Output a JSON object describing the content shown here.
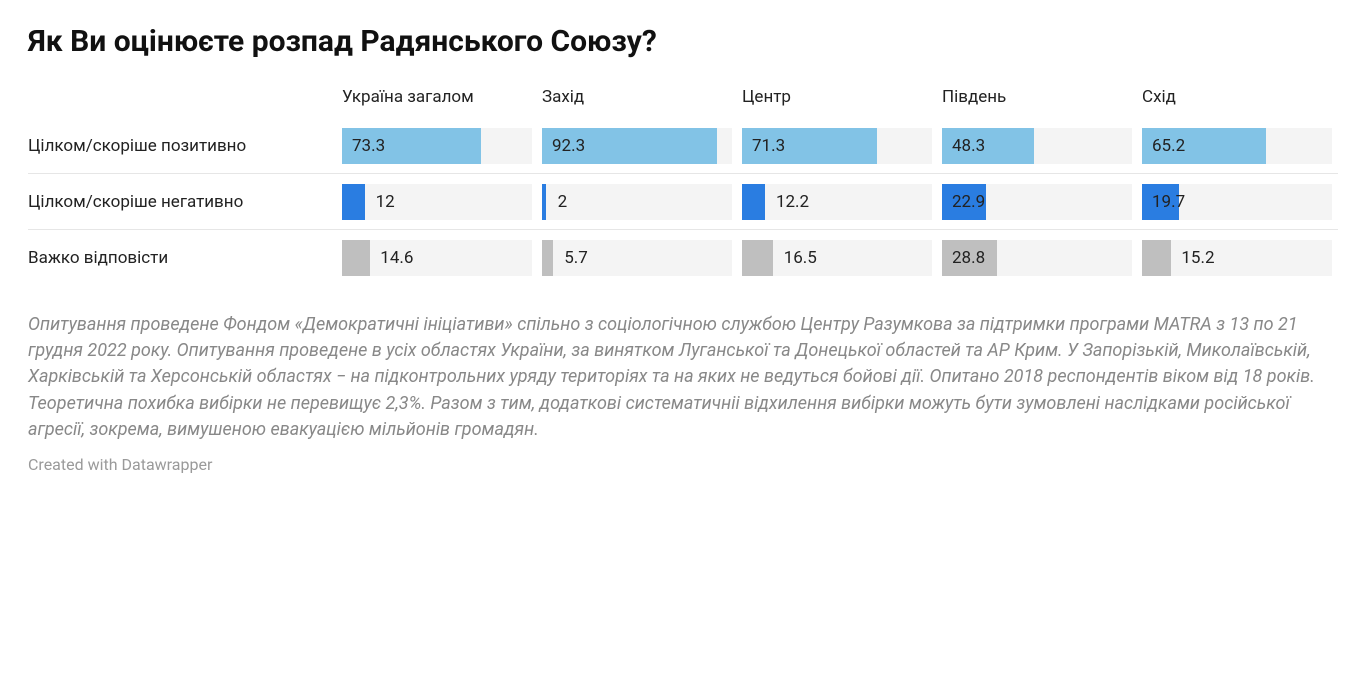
{
  "title": "Як Ви оцінюєте розпад Радянського Союзу?",
  "columns": [
    "Україна загалом",
    "Захід",
    "Центр",
    "Південь",
    "Схід"
  ],
  "rows": [
    {
      "label": "Цілком/скоріше позитивно",
      "color": "#82c3e6",
      "values": [
        73.3,
        92.3,
        71.3,
        48.3,
        65.2
      ]
    },
    {
      "label": "Цілком/скоріше негативно",
      "color": "#2a7de1",
      "values": [
        12,
        2,
        12.2,
        22.9,
        19.7
      ]
    },
    {
      "label": "Важко відповісти",
      "color": "#bfbfbf",
      "values": [
        14.6,
        5.7,
        16.5,
        28.8,
        15.2
      ]
    }
  ],
  "max_value": 100,
  "bar_bg_color": "#f4f4f4",
  "value_fontsize": 17,
  "label_fontsize": 17,
  "header_fontsize": 17,
  "title_fontsize": 30,
  "row_border_color": "#e6e6e6",
  "footnote": "Опитування проведене Фондом «Демократичні ініціативи» спільно з соціологічною службою Центру Разумкова за підтримки програми MATRA з 13 по 21 грудня 2022 року. Опитування проведене в усіх областях України, за винятком Луганської та Донецької областей та АР Крим. У Запорізькій, Миколаївській, Харківській та Херсонській областях − на підконтрольних уряду територіях та на яких не ведуться бойові дії. Опитано 2018 респондентів віком від 18 років. Теоретична похибка вибірки не перевищує 2,3%. Разом з тим, додаткові систематичніі відхилення вибірки можуть бути зумовлені наслідками російської агресії, зокрема, вимушеною евакуацією мільйонів громадян.",
  "credit": "Created with Datawrapper"
}
